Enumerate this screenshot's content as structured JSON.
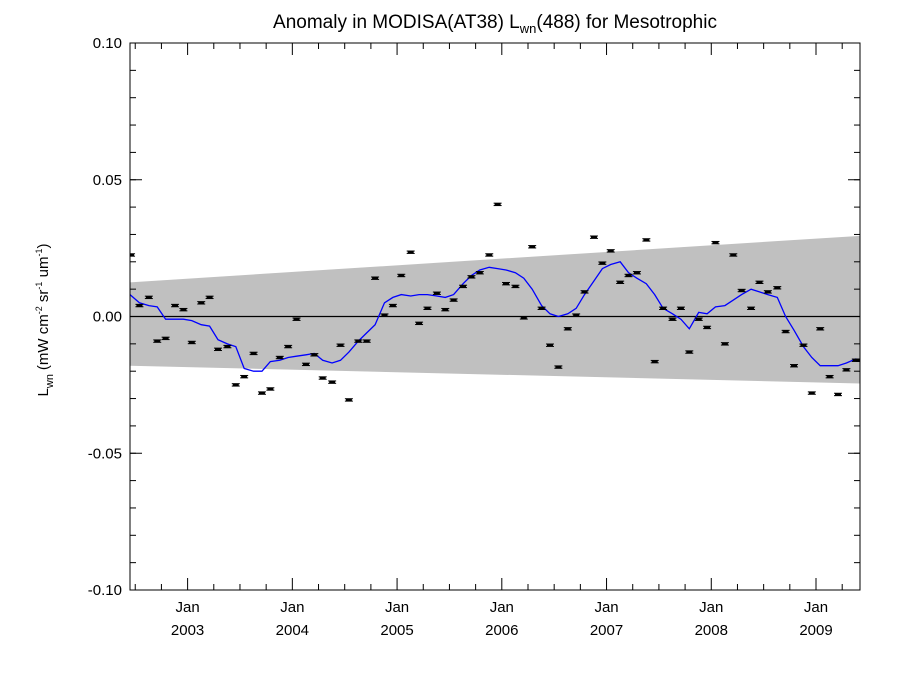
{
  "chart_data": {
    "type": "scatter",
    "title": {
      "prefix": "Anomaly in MODISA(AT38) L",
      "subscript": "wn",
      "suffix": "(488) for Mesotrophic"
    },
    "xlabel": "",
    "ylabel": {
      "main": "L",
      "subscript": "wn",
      "units": "(mW cm",
      "exp1": "-2",
      "part2": " sr",
      "exp2": "-1",
      "part3": " um",
      "exp3": "-1",
      "close": ")"
    },
    "xlim": [
      2002.45,
      2009.42
    ],
    "ylim": [
      -0.1,
      0.1
    ],
    "x_ticks": [
      {
        "x": 2003.0,
        "month": "Jan",
        "year": "2003"
      },
      {
        "x": 2004.0,
        "month": "Jan",
        "year": "2004"
      },
      {
        "x": 2005.0,
        "month": "Jan",
        "year": "2005"
      },
      {
        "x": 2006.0,
        "month": "Jan",
        "year": "2006"
      },
      {
        "x": 2007.0,
        "month": "Jan",
        "year": "2007"
      },
      {
        "x": 2008.0,
        "month": "Jan",
        "year": "2008"
      },
      {
        "x": 2009.0,
        "month": "Jan",
        "year": "2009"
      }
    ],
    "y_ticks": [
      {
        "value": 0.1,
        "label": "0.10"
      },
      {
        "value": 0.05,
        "label": "0.05"
      },
      {
        "value": 0.0,
        "label": "0.00"
      },
      {
        "value": -0.05,
        "label": "-0.05"
      },
      {
        "value": -0.1,
        "label": "-0.10"
      }
    ],
    "grid": false,
    "zero_line": 0.0,
    "band": {
      "x": [
        2002.45,
        2009.42
      ],
      "upper": [
        0.0125,
        0.0295
      ],
      "lower": [
        -0.018,
        -0.0245
      ]
    },
    "colors": {
      "band": "#c0c0c0",
      "running_mean": "#0000ff",
      "points": "#000000",
      "zero_line": "#000000"
    },
    "series": [
      {
        "name": "",
        "style": "points",
        "x": [
          2002.46,
          2002.54,
          2002.63,
          2002.71,
          2002.79,
          2002.88,
          2002.96,
          2003.04,
          2003.13,
          2003.21,
          2003.29,
          2003.38,
          2003.46,
          2003.54,
          2003.63,
          2003.71,
          2003.79,
          2003.88,
          2003.96,
          2004.04,
          2004.13,
          2004.21,
          2004.29,
          2004.38,
          2004.46,
          2004.54,
          2004.63,
          2004.71,
          2004.79,
          2004.88,
          2004.96,
          2005.04,
          2005.13,
          2005.21,
          2005.29,
          2005.38,
          2005.46,
          2005.54,
          2005.63,
          2005.71,
          2005.79,
          2005.88,
          2005.96,
          2006.04,
          2006.13,
          2006.21,
          2006.29,
          2006.38,
          2006.46,
          2006.54,
          2006.63,
          2006.71,
          2006.79,
          2006.88,
          2006.96,
          2007.04,
          2007.13,
          2007.21,
          2007.29,
          2007.38,
          2007.46,
          2007.54,
          2007.63,
          2007.71,
          2007.79,
          2007.88,
          2007.96,
          2008.04,
          2008.13,
          2008.21,
          2008.29,
          2008.38,
          2008.46,
          2008.54,
          2008.63,
          2008.71,
          2008.79,
          2008.88,
          2008.96,
          2009.04,
          2009.13,
          2009.21,
          2009.29,
          2009.38,
          2009.42
        ],
        "y": [
          0.0225,
          0.004,
          0.007,
          -0.009,
          -0.008,
          0.004,
          0.0025,
          -0.0095,
          0.005,
          0.007,
          -0.012,
          -0.011,
          -0.025,
          -0.022,
          -0.0135,
          -0.028,
          -0.0265,
          -0.015,
          -0.011,
          -0.001,
          -0.0175,
          -0.014,
          -0.0225,
          -0.024,
          -0.0105,
          -0.0305,
          -0.009,
          -0.009,
          0.014,
          0.0005,
          0.004,
          0.015,
          0.0235,
          -0.0025,
          0.003,
          0.0085,
          0.0025,
          0.006,
          0.011,
          0.0145,
          0.016,
          0.0225,
          0.041,
          0.012,
          0.011,
          -0.0005,
          0.0255,
          0.003,
          -0.0105,
          -0.0185,
          -0.0045,
          0.0005,
          0.009,
          0.029,
          0.0195,
          0.024,
          0.0125,
          0.015,
          0.016,
          0.028,
          -0.0165,
          0.003,
          -0.001,
          0.003,
          -0.013,
          -0.001,
          -0.004,
          0.027,
          -0.01,
          0.0225,
          0.0095,
          0.003,
          0.0125,
          0.009,
          0.0105,
          -0.0055,
          -0.018,
          -0.0105,
          -0.028,
          -0.0045,
          -0.022,
          -0.0285,
          -0.0195,
          -0.016,
          -0.016
        ]
      },
      {
        "name": "",
        "style": "line",
        "x": [
          2002.45,
          2002.54,
          2002.63,
          2002.71,
          2002.79,
          2002.88,
          2002.96,
          2003.04,
          2003.13,
          2003.21,
          2003.29,
          2003.38,
          2003.46,
          2003.54,
          2003.63,
          2003.71,
          2003.79,
          2003.88,
          2003.96,
          2004.04,
          2004.13,
          2004.21,
          2004.29,
          2004.38,
          2004.46,
          2004.54,
          2004.63,
          2004.71,
          2004.79,
          2004.88,
          2004.96,
          2005.04,
          2005.13,
          2005.21,
          2005.29,
          2005.38,
          2005.46,
          2005.54,
          2005.63,
          2005.71,
          2005.79,
          2005.88,
          2005.96,
          2006.04,
          2006.13,
          2006.21,
          2006.29,
          2006.38,
          2006.46,
          2006.54,
          2006.63,
          2006.71,
          2006.79,
          2006.88,
          2006.96,
          2007.04,
          2007.13,
          2007.21,
          2007.29,
          2007.38,
          2007.46,
          2007.54,
          2007.63,
          2007.71,
          2007.79,
          2007.88,
          2007.96,
          2008.04,
          2008.13,
          2008.21,
          2008.29,
          2008.38,
          2008.46,
          2008.54,
          2008.63,
          2008.71,
          2008.79,
          2008.88,
          2008.96,
          2009.04,
          2009.13,
          2009.21,
          2009.29,
          2009.38,
          2009.42
        ],
        "y": [
          0.008,
          0.005,
          0.004,
          0.0035,
          -0.001,
          -0.001,
          -0.001,
          -0.0015,
          -0.003,
          -0.0035,
          -0.0085,
          -0.01,
          -0.011,
          -0.019,
          -0.02,
          -0.02,
          -0.0165,
          -0.016,
          -0.015,
          -0.0145,
          -0.014,
          -0.0135,
          -0.016,
          -0.017,
          -0.016,
          -0.013,
          -0.009,
          -0.006,
          -0.003,
          0.005,
          0.007,
          0.008,
          0.0075,
          0.008,
          0.008,
          0.0075,
          0.007,
          0.008,
          0.012,
          0.015,
          0.017,
          0.018,
          0.0175,
          0.017,
          0.016,
          0.014,
          0.01,
          0.004,
          0.001,
          0.0,
          0.001,
          0.003,
          0.008,
          0.013,
          0.0175,
          0.019,
          0.02,
          0.016,
          0.014,
          0.012,
          0.008,
          0.003,
          0.001,
          -0.001,
          -0.0045,
          0.0015,
          0.001,
          0.0035,
          0.004,
          0.006,
          0.008,
          0.01,
          0.009,
          0.008,
          0.007,
          0.0,
          -0.005,
          -0.011,
          -0.015,
          -0.018,
          -0.018,
          -0.018,
          -0.017,
          -0.0155,
          -0.016
        ]
      }
    ]
  }
}
